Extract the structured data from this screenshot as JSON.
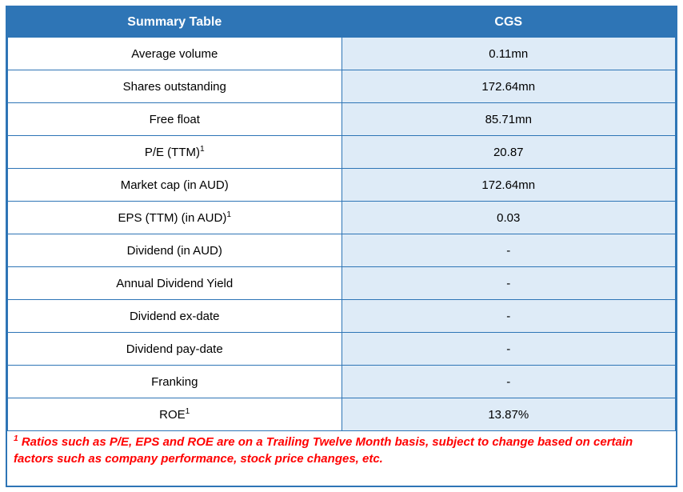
{
  "table": {
    "header": {
      "col1": "Summary Table",
      "col2": "CGS"
    },
    "rows": [
      {
        "label": "Average volume",
        "value": "0.11mn"
      },
      {
        "label": "Shares outstanding",
        "value": "172.64mn"
      },
      {
        "label": "Free float",
        "value": "85.71mn"
      },
      {
        "label": "P/E (TTM)¹",
        "value": "20.87"
      },
      {
        "label": "Market cap (in AUD)",
        "value": "172.64mn"
      },
      {
        "label": "EPS (TTM) (in AUD)¹",
        "value": "0.03"
      },
      {
        "label": "Dividend (in AUD)",
        "value": "-"
      },
      {
        "label": "Annual Dividend Yield",
        "value": "-"
      },
      {
        "label": "Dividend ex-date",
        "value": "-"
      },
      {
        "label": "Dividend pay-date",
        "value": "-"
      },
      {
        "label": "Franking",
        "value": "-"
      },
      {
        "label": "ROE¹",
        "value": "13.87%"
      }
    ]
  },
  "footnote": "¹ Ratios such as P/E, EPS and ROE are on a Trailing Twelve Month basis, subject to change based on certain factors such as company performance, stock price changes, etc.",
  "colors": {
    "header_bg": "#2E75B6",
    "value_cell_bg": "#DEEBF7",
    "border": "#2E75B6",
    "footnote_text": "#FF0000",
    "header_text": "#FFFFFF",
    "body_text": "#000000"
  },
  "chart_data": {
    "type": "table",
    "title": "Summary Table",
    "columns": [
      "Summary Table",
      "CGS"
    ],
    "rows": [
      [
        "Average volume",
        "0.11mn"
      ],
      [
        "Shares outstanding",
        "172.64mn"
      ],
      [
        "Free float",
        "85.71mn"
      ],
      [
        "P/E (TTM)¹",
        "20.87"
      ],
      [
        "Market cap (in AUD)",
        "172.64mn"
      ],
      [
        "EPS (TTM) (in AUD)¹",
        "0.03"
      ],
      [
        "Dividend (in AUD)",
        "-"
      ],
      [
        "Annual Dividend Yield",
        "-"
      ],
      [
        "Dividend ex-date",
        "-"
      ],
      [
        "Dividend pay-date",
        "-"
      ],
      [
        "Franking",
        "-"
      ],
      [
        "ROE¹",
        "13.87%"
      ],
      [
        "footnote",
        "¹ Ratios such as P/E, EPS and ROE are on a Trailing Twelve Month basis, subject to change based on certain factors such as company performance, stock price changes, etc."
      ]
    ]
  }
}
